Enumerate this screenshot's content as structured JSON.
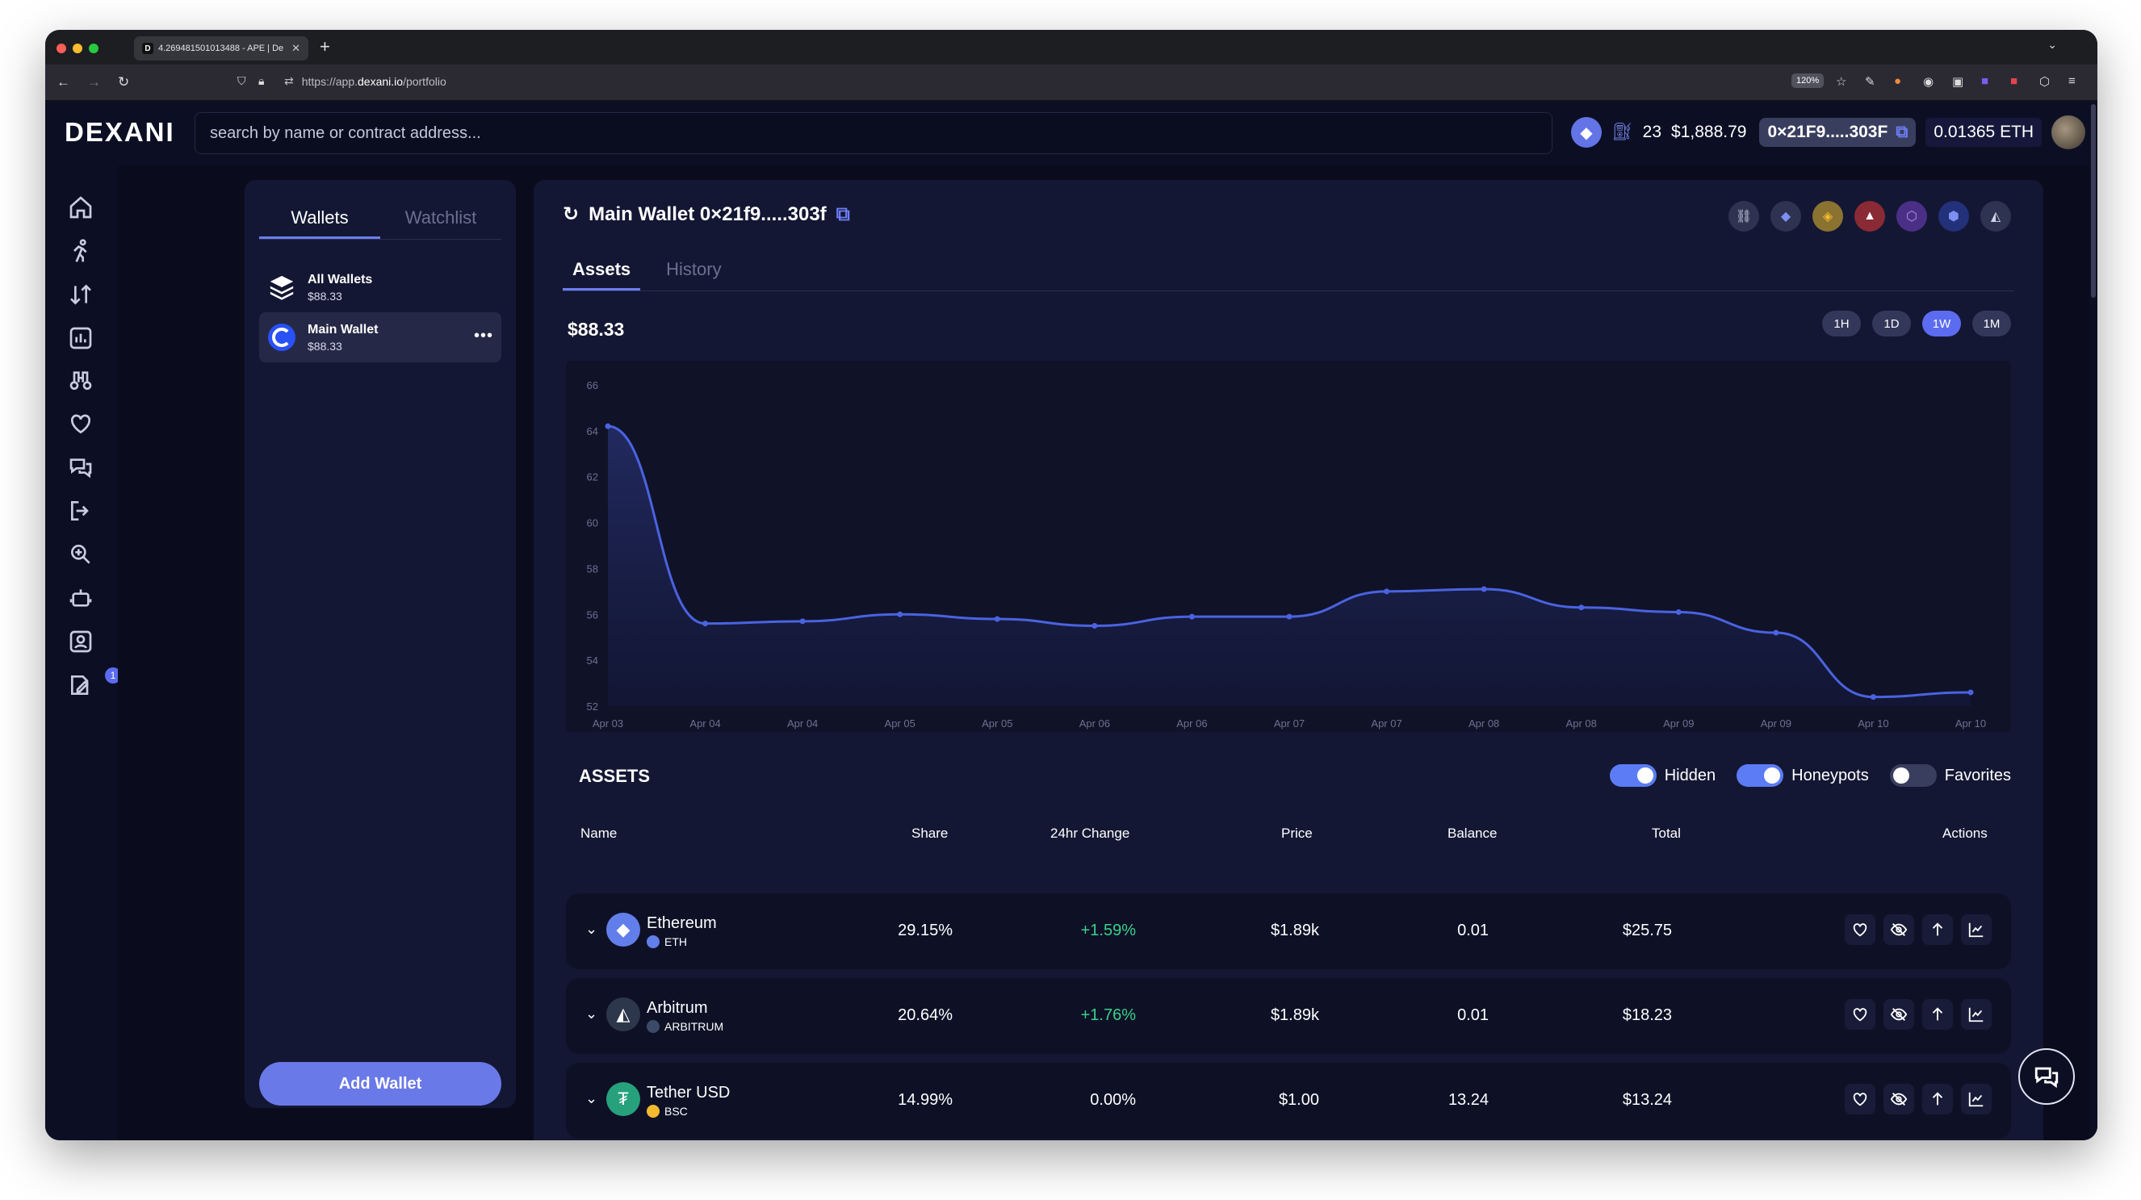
{
  "browser": {
    "tab_title": "4.269481501013488 - APE | De",
    "tab_favicon": "D",
    "url_prefix": "https://app.",
    "url_host": "dexani.io",
    "url_path": "/portfolio",
    "zoom": "120%"
  },
  "header": {
    "logo": "DEXANI",
    "search_placeholder": "search by name or contract address...",
    "gas": "23",
    "eth_price": "$1,888.79",
    "address": "0×21F9.....303F",
    "eth_balance": "0.01365 ETH"
  },
  "sidebar": {
    "items": [
      "home-icon",
      "runner-icon",
      "swap-arrows-icon",
      "chart-box-icon",
      "binoculars-icon",
      "heart-icon",
      "chat-icon",
      "logout-icon",
      "search-gear-icon",
      "robot-icon",
      "contact-icon",
      "edit-doc-icon"
    ],
    "notification_count": "1"
  },
  "wallets_panel": {
    "tabs": [
      "Wallets",
      "Watchlist"
    ],
    "items": [
      {
        "name": "All Wallets",
        "value": "$88.33"
      },
      {
        "name": "Main Wallet",
        "value": "$88.33"
      }
    ],
    "more": "•••",
    "add_button": "Add Wallet"
  },
  "main": {
    "title": "Main Wallet 0×21f9.....303f",
    "tabs": [
      "Assets",
      "History"
    ],
    "portfolio_value": "$88.33",
    "ranges": [
      "1H",
      "1D",
      "1W",
      "1M"
    ],
    "active_range": "1W",
    "chains": [
      "link-icon",
      "ethereum-icon",
      "bnb-icon",
      "avalanche-icon",
      "polygon-icon",
      "chainlink-icon",
      "arbitrum-icon"
    ]
  },
  "chart_data": {
    "type": "area",
    "x": [
      "Apr 03",
      "Apr 04",
      "Apr 04",
      "Apr 05",
      "Apr 05",
      "Apr 06",
      "Apr 06",
      "Apr 07",
      "Apr 07",
      "Apr 08",
      "Apr 08",
      "Apr 09",
      "Apr 09",
      "Apr 10",
      "Apr 10"
    ],
    "values": [
      64.2,
      55.6,
      55.7,
      56.0,
      55.8,
      55.5,
      55.9,
      55.9,
      57.0,
      57.1,
      56.3,
      56.1,
      55.2,
      52.4,
      52.6
    ],
    "yticks": [
      52,
      54,
      56,
      58,
      60,
      62,
      64,
      66
    ],
    "ylim": [
      52,
      66
    ],
    "line_color": "#4a63e0",
    "grid": false
  },
  "assets": {
    "heading": "ASSETS",
    "toggles": [
      {
        "label": "Hidden",
        "on": true
      },
      {
        "label": "Honeypots",
        "on": true
      },
      {
        "label": "Favorites",
        "on": false
      }
    ],
    "columns": [
      "Name",
      "Share",
      "24hr Change",
      "Price",
      "Balance",
      "Total",
      "Actions"
    ],
    "rows": [
      {
        "name": "Ethereum",
        "network": "ETH",
        "share": "29.15%",
        "change": "+1.59%",
        "price": "$1.89k",
        "balance": "0.01",
        "total": "$25.75",
        "icon": "ethereum-icon",
        "color": "#627eea",
        "netcolor": "#627eea"
      },
      {
        "name": "Arbitrum",
        "network": "ARBITRUM",
        "share": "20.64%",
        "change": "+1.76%",
        "price": "$1.89k",
        "balance": "0.01",
        "total": "$18.23",
        "icon": "arbitrum-icon",
        "color": "#2d374b",
        "netcolor": "#3b4a66"
      },
      {
        "name": "Tether USD",
        "network": "BSC",
        "share": "14.99%",
        "change": "0.00%",
        "price": "$1.00",
        "balance": "13.24",
        "total": "$13.24",
        "icon": "tether-icon",
        "color": "#26a17b",
        "netcolor": "#f3ba2f"
      }
    ]
  }
}
